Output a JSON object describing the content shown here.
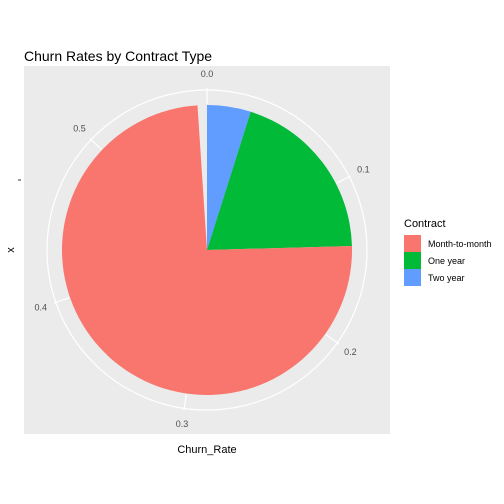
{
  "chart_data": {
    "type": "pie",
    "title": "Churn Rates by Contract Type",
    "xlabel": "Churn_Rate",
    "ylabel": "x",
    "y_tick_label": "",
    "theta_ticks": [
      "0.0",
      "0.1",
      "0.2",
      "0.3",
      "0.4",
      "0.5"
    ],
    "theta_tick_values": [
      0.0,
      0.1,
      0.2,
      0.3,
      0.4,
      0.5
    ],
    "theta_max": 0.574,
    "categories": [
      "Month-to-month",
      "One year",
      "Two year"
    ],
    "values": [
      0.427,
      0.113,
      0.028
    ],
    "colors": [
      "#F8766D",
      "#00BA38",
      "#619CFF"
    ],
    "legend": {
      "title": "Contract",
      "placement": "right",
      "items": [
        "Month-to-month",
        "One year",
        "Two year"
      ]
    },
    "panel_background": "#EBEBEB",
    "grid_color": "#FFFFFF"
  }
}
